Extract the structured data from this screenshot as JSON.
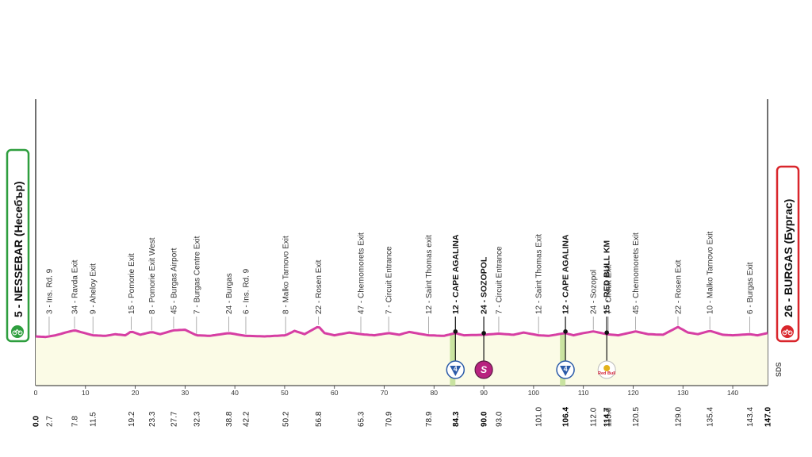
{
  "start": {
    "label": "5 - NESSEBAR (Несебър)",
    "badge_color": "#2e9e3e"
  },
  "finish": {
    "label": "26 - BURGAS (Бургас)",
    "badge_color": "#d9262c"
  },
  "watermark": "SDS",
  "colors": {
    "profile_line": "#d63ea3",
    "profile_fill": "#fbfbe6",
    "climb_fill": "#c9e3a0",
    "sprint_badge": "#b8227f",
    "km_badge": "#2a5aa8"
  },
  "chart_data": {
    "type": "area",
    "title": "",
    "xlabel": "",
    "ylabel": "",
    "xlim": [
      0,
      147
    ],
    "x_ticks": [
      10,
      20,
      30,
      40,
      50,
      60,
      70,
      80,
      90,
      100,
      110,
      120,
      130,
      140
    ],
    "distance_markers": [
      "0.0",
      "2.7",
      "7.8",
      "11.5",
      "19.2",
      "23.3",
      "27.7",
      "32.3",
      "38.8",
      "42.2",
      "50.2",
      "56.8",
      "65.3",
      "70.9",
      "78.9",
      "84.3",
      "90.0",
      "93.0",
      "101.0",
      "106.4",
      "112.0",
      "114.7",
      "115.0",
      "120.5",
      "129.0",
      "135.4",
      "143.4",
      "147.0"
    ],
    "waypoints": [
      {
        "km": 2.7,
        "label": "3 - Ins. Rd. 9"
      },
      {
        "km": 7.8,
        "label": "34 - Ravda Exit"
      },
      {
        "km": 11.5,
        "label": "9 - Aheloy Exit"
      },
      {
        "km": 19.2,
        "label": "15 - Pomorie Exit"
      },
      {
        "km": 23.3,
        "label": "8 - Pomorie Exit West"
      },
      {
        "km": 27.7,
        "label": "45 - Burgas Airport"
      },
      {
        "km": 32.3,
        "label": "7 - Burgas Centre Exit"
      },
      {
        "km": 38.8,
        "label": "24 - Burgas"
      },
      {
        "km": 42.2,
        "label": "6 - Ins. Rd. 9"
      },
      {
        "km": 50.2,
        "label": "8 - Malko Tarnovo Exit"
      },
      {
        "km": 56.8,
        "label": "22 - Rosen Exit"
      },
      {
        "km": 65.3,
        "label": "47 - Chernomorets Exit"
      },
      {
        "km": 70.9,
        "label": "7 - Circuit Entrance"
      },
      {
        "km": 78.9,
        "label": "12 - Saint Thomas exit"
      },
      {
        "km": 84.3,
        "label": "12 - CAPE AGALINA",
        "bold": true,
        "badge": "km"
      },
      {
        "km": 90.0,
        "label": "24 - SOZOPOL",
        "bold": true,
        "badge": "sprint"
      },
      {
        "km": 93.0,
        "label": "7 - Circuit Entrance"
      },
      {
        "km": 101.0,
        "label": "12 - Saint Thomas Exit"
      },
      {
        "km": 106.4,
        "label": "12 - CAPE AGALINA",
        "bold": true,
        "badge": "km"
      },
      {
        "km": 112.0,
        "label": "24 - Sozopol"
      },
      {
        "km": 114.7,
        "label": "15 - RED BULL KM",
        "bold": true,
        "badge": "redbull"
      },
      {
        "km": 115.0,
        "label": "7 - Circuit Exit"
      },
      {
        "km": 120.5,
        "label": "45 - Chernomorets Exit"
      },
      {
        "km": 129.0,
        "label": "22 - Rosen Exit"
      },
      {
        "km": 135.4,
        "label": "10 - Malko Tarnovo Exit"
      },
      {
        "km": 143.4,
        "label": "6 - Burgas Exit"
      }
    ],
    "badges": {
      "km": "4",
      "sprint": "S",
      "redbull": "Red Bull"
    },
    "climbs": [
      [
        83.2,
        84.3
      ],
      [
        105.3,
        106.4
      ]
    ],
    "elevation_relative": [
      [
        0,
        0.0
      ],
      [
        2,
        -0.05
      ],
      [
        4,
        0.1
      ],
      [
        6,
        0.35
      ],
      [
        7.8,
        0.55
      ],
      [
        9,
        0.4
      ],
      [
        11.5,
        0.1
      ],
      [
        14,
        0.05
      ],
      [
        16,
        0.2
      ],
      [
        18,
        0.1
      ],
      [
        19.2,
        0.45
      ],
      [
        21,
        0.15
      ],
      [
        23.3,
        0.4
      ],
      [
        25,
        0.2
      ],
      [
        27.7,
        0.55
      ],
      [
        30,
        0.6
      ],
      [
        32.3,
        0.1
      ],
      [
        35,
        0.05
      ],
      [
        38.8,
        0.3
      ],
      [
        42.2,
        0.05
      ],
      [
        46,
        0.0
      ],
      [
        50.2,
        0.1
      ],
      [
        52,
        0.5
      ],
      [
        54,
        0.2
      ],
      [
        56.8,
        0.9
      ],
      [
        58,
        0.3
      ],
      [
        60,
        0.1
      ],
      [
        63,
        0.35
      ],
      [
        65.3,
        0.2
      ],
      [
        68,
        0.1
      ],
      [
        70.9,
        0.3
      ],
      [
        73,
        0.15
      ],
      [
        75,
        0.4
      ],
      [
        78.9,
        0.1
      ],
      [
        82,
        0.05
      ],
      [
        84.3,
        0.3
      ],
      [
        86,
        0.1
      ],
      [
        90.0,
        0.15
      ],
      [
        93.0,
        0.25
      ],
      [
        96,
        0.15
      ],
      [
        98,
        0.35
      ],
      [
        101.0,
        0.1
      ],
      [
        103,
        0.05
      ],
      [
        106.4,
        0.3
      ],
      [
        108,
        0.1
      ],
      [
        110,
        0.3
      ],
      [
        112.0,
        0.45
      ],
      [
        114.7,
        0.2
      ],
      [
        117,
        0.1
      ],
      [
        120.5,
        0.45
      ],
      [
        123,
        0.2
      ],
      [
        126,
        0.15
      ],
      [
        129.0,
        0.85
      ],
      [
        131,
        0.35
      ],
      [
        133,
        0.2
      ],
      [
        135.4,
        0.5
      ],
      [
        138,
        0.15
      ],
      [
        140,
        0.1
      ],
      [
        143.4,
        0.2
      ],
      [
        145,
        0.1
      ],
      [
        147,
        0.3
      ]
    ]
  }
}
